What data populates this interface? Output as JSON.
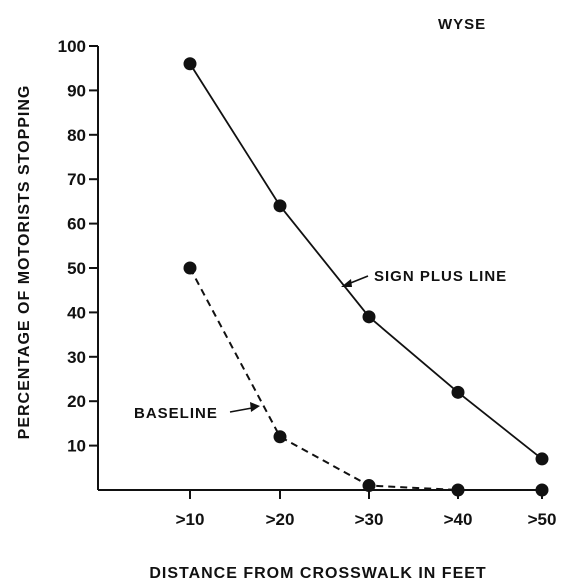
{
  "chart_data": {
    "type": "line",
    "title": "WYSE",
    "xlabel": "DISTANCE FROM CROSSWALK IN FEET",
    "ylabel": "PERCENTAGE OF MOTORISTS STOPPING",
    "categories": [
      ">10",
      ">20",
      ">30",
      ">40",
      ">50"
    ],
    "yticks": [
      10,
      20,
      30,
      40,
      50,
      60,
      70,
      80,
      90,
      100
    ],
    "ylim": [
      0,
      100
    ],
    "grid": false,
    "series": [
      {
        "name": "SIGN PLUS LINE",
        "style": "solid",
        "values": [
          96,
          64,
          39,
          22,
          7
        ]
      },
      {
        "name": "BASELINE",
        "style": "dashed",
        "values": [
          50,
          12,
          1,
          0,
          0
        ]
      }
    ],
    "colors": {
      "line": "#111111",
      "marker": "#111111",
      "background": "#ffffff"
    }
  }
}
